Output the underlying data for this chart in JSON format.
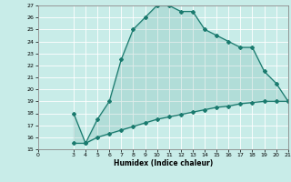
{
  "xlabel": "Humidex (Indice chaleur)",
  "upper_x": [
    3,
    4,
    5,
    6,
    7,
    8,
    9,
    10,
    11,
    12,
    13,
    14,
    15,
    16,
    17,
    18,
    19,
    20,
    21
  ],
  "upper_y": [
    18,
    15.5,
    17.5,
    19,
    22.5,
    25,
    26,
    27,
    27,
    26.5,
    26.5,
    25,
    24.5,
    24,
    23.5,
    23.5,
    21.5,
    20.5,
    19
  ],
  "lower_x": [
    3,
    4,
    5,
    6,
    7,
    8,
    9,
    10,
    11,
    12,
    13,
    14,
    15,
    16,
    17,
    18,
    19,
    20,
    21
  ],
  "lower_y": [
    15.5,
    15.5,
    16.0,
    16.3,
    16.6,
    16.9,
    17.2,
    17.5,
    17.7,
    17.9,
    18.1,
    18.3,
    18.5,
    18.6,
    18.8,
    18.9,
    19.0,
    19.0,
    19.0
  ],
  "line_color": "#1a7a6e",
  "bg_color": "#c8ece8",
  "grid_color": "#ffffff",
  "ylim": [
    15,
    27
  ],
  "xlim": [
    0,
    21
  ],
  "yticks": [
    15,
    16,
    17,
    18,
    19,
    20,
    21,
    22,
    23,
    24,
    25,
    26,
    27
  ],
  "xticks": [
    0,
    3,
    4,
    5,
    6,
    7,
    8,
    9,
    10,
    11,
    12,
    13,
    14,
    15,
    16,
    17,
    18,
    19,
    20,
    21
  ]
}
